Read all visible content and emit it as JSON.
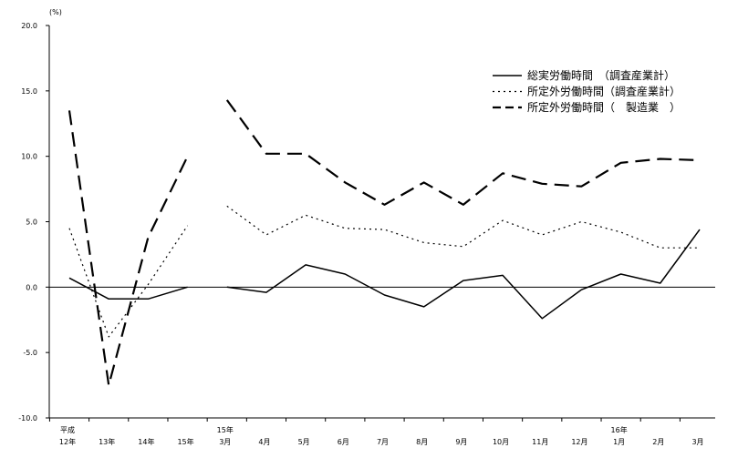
{
  "chart_data": {
    "type": "line",
    "ylabel": "(%)",
    "ylim": [
      -10,
      20
    ],
    "yticks": [
      "20.0",
      "15.0",
      "10.0",
      "5.0",
      "0.0",
      "-5.0",
      "-10.0"
    ],
    "grid": false,
    "legend_position": "top-right",
    "categories": [
      {
        "top": "平成",
        "bottom": "12年"
      },
      {
        "top": "",
        "bottom": "13年"
      },
      {
        "top": "",
        "bottom": "14年"
      },
      {
        "top": "",
        "bottom": "15年"
      },
      {
        "top": "15年",
        "bottom": "3月"
      },
      {
        "top": "",
        "bottom": "4月"
      },
      {
        "top": "",
        "bottom": "5月"
      },
      {
        "top": "",
        "bottom": "6月"
      },
      {
        "top": "",
        "bottom": "7月"
      },
      {
        "top": "",
        "bottom": "8月"
      },
      {
        "top": "",
        "bottom": "9月"
      },
      {
        "top": "",
        "bottom": "10月"
      },
      {
        "top": "",
        "bottom": "11月"
      },
      {
        "top": "",
        "bottom": "12月"
      },
      {
        "top": "16年",
        "bottom": "1月"
      },
      {
        "top": "",
        "bottom": "2月"
      },
      {
        "top": "",
        "bottom": "3月"
      }
    ],
    "series": [
      {
        "name": "総実労働時間　（調査産業計）",
        "style": "solid",
        "values": [
          0.7,
          -0.9,
          -0.9,
          0.0,
          0.0,
          -0.4,
          1.7,
          1.0,
          -0.6,
          -1.5,
          0.5,
          0.9,
          -2.4,
          -0.2,
          1.0,
          0.3,
          4.4
        ]
      },
      {
        "name": "所定外労働時間（調査産業計）",
        "style": "dotted",
        "values": [
          4.5,
          -3.8,
          0.2,
          4.7,
          6.2,
          4.0,
          5.5,
          4.5,
          4.4,
          3.4,
          3.1,
          5.1,
          4.0,
          5.0,
          4.2,
          3.0,
          3.0
        ]
      },
      {
        "name": "所定外労働時間（　製造業　）",
        "style": "dashed",
        "values": [
          13.5,
          -7.5,
          3.8,
          10.0,
          14.3,
          10.2,
          10.2,
          8.0,
          6.3,
          8.0,
          6.3,
          8.7,
          7.9,
          7.7,
          9.5,
          9.8,
          9.7
        ]
      }
    ],
    "segments": [
      [
        0,
        3
      ],
      [
        4,
        16
      ]
    ]
  }
}
